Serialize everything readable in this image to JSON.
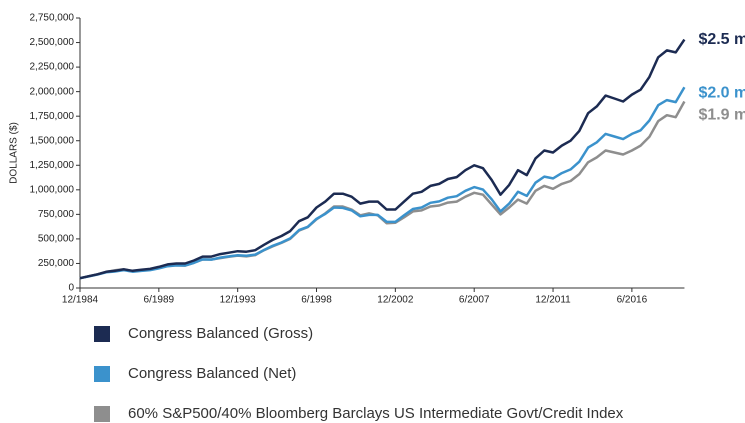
{
  "chart_data": {
    "type": "line",
    "y_label": "DOLLARS ($)",
    "categories": [
      "12/1984",
      null,
      null,
      null,
      null,
      null,
      null,
      null,
      null,
      "6/1989",
      null,
      null,
      null,
      null,
      null,
      null,
      null,
      null,
      "12/1993",
      null,
      null,
      null,
      null,
      null,
      null,
      null,
      null,
      "6/1998",
      null,
      null,
      null,
      null,
      null,
      null,
      null,
      null,
      "12/2002",
      null,
      null,
      null,
      null,
      null,
      null,
      null,
      null,
      "6/2007",
      null,
      null,
      null,
      null,
      null,
      null,
      null,
      null,
      "12/2011",
      null,
      null,
      null,
      null,
      null,
      null,
      null,
      null,
      "6/2016",
      null,
      null,
      null,
      null,
      null,
      null
    ],
    "series": [
      {
        "name": "Congress Balanced  (Gross)",
        "color": "#1c2b52",
        "values": [
          100000,
          120000,
          140000,
          165000,
          175000,
          190000,
          175000,
          185000,
          195000,
          215000,
          240000,
          250000,
          250000,
          280000,
          320000,
          320000,
          345000,
          360000,
          375000,
          370000,
          385000,
          440000,
          490000,
          530000,
          580000,
          680000,
          720000,
          820000,
          880000,
          960000,
          960000,
          930000,
          860000,
          880000,
          880000,
          800000,
          800000,
          880000,
          960000,
          980000,
          1040000,
          1060000,
          1110000,
          1130000,
          1200000,
          1250000,
          1220000,
          1100000,
          950000,
          1050000,
          1200000,
          1150000,
          1320000,
          1400000,
          1380000,
          1450000,
          1500000,
          1600000,
          1780000,
          1850000,
          1960000,
          1930000,
          1900000,
          1970000,
          2020000,
          2150000,
          2350000,
          2420000,
          2400000,
          2530000
        ]
      },
      {
        "name": "Congress Balanced (Net)",
        "color": "#3b92cc",
        "values": [
          100000,
          118000,
          137000,
          160000,
          168000,
          181000,
          166000,
          174000,
          182000,
          200000,
          222000,
          230000,
          229000,
          256000,
          291000,
          289000,
          310000,
          322000,
          334000,
          328000,
          340000,
          387000,
          430000,
          463000,
          505000,
          590000,
          623000,
          705000,
          755000,
          820000,
          816000,
          790000,
          730000,
          745000,
          745000,
          675000,
          673000,
          740000,
          805000,
          820000,
          868000,
          882000,
          920000,
          935000,
          990000,
          1028000,
          1002000,
          903000,
          780000,
          860000,
          980000,
          938000,
          1073000,
          1135000,
          1116000,
          1170000,
          1208000,
          1286000,
          1430000,
          1484000,
          1570000,
          1543000,
          1517000,
          1570000,
          1606000,
          1706000,
          1862000,
          1914000,
          1893000,
          2045000
        ]
      },
      {
        "name": "60% S&P500/40% Bloomberg Barclays US Intermediate Govt/Credit Index",
        "color": "#8e8e8e",
        "values": [
          100000,
          120000,
          140000,
          165000,
          180000,
          190000,
          170000,
          180000,
          188000,
          205000,
          228000,
          232000,
          228000,
          258000,
          290000,
          290000,
          305000,
          318000,
          330000,
          322000,
          335000,
          385000,
          425000,
          460000,
          500000,
          585000,
          620000,
          700000,
          760000,
          830000,
          830000,
          800000,
          740000,
          760000,
          740000,
          660000,
          665000,
          720000,
          780000,
          790000,
          830000,
          840000,
          870000,
          880000,
          930000,
          970000,
          950000,
          850000,
          750000,
          820000,
          900000,
          860000,
          990000,
          1040000,
          1010000,
          1060000,
          1090000,
          1160000,
          1280000,
          1330000,
          1400000,
          1380000,
          1360000,
          1400000,
          1450000,
          1540000,
          1700000,
          1760000,
          1740000,
          1900000
        ]
      }
    ],
    "annotations": [
      "$2.5 m",
      "$2.0 m",
      "$1.9 m"
    ],
    "ylim": [
      0,
      2750000
    ],
    "yticks": [
      0,
      {
        "value": 250000,
        "label": "250,000"
      },
      {
        "value": 500000,
        "label": "500,000"
      },
      {
        "value": 750000,
        "label": "750,000"
      },
      {
        "value": 1000000,
        "label": "1,000,000"
      },
      {
        "value": 1250000,
        "label": "1,250,000"
      },
      {
        "value": 1500000,
        "label": "1,500,000"
      },
      {
        "value": 1750000,
        "label": "1,750,000"
      },
      {
        "value": 2000000,
        "label": "2,000,000"
      },
      {
        "value": 2250000,
        "label": "2,250,000"
      },
      {
        "value": 2500000,
        "label": "2,500,000"
      },
      {
        "value": 2750000,
        "label": "2,750,000"
      }
    ],
    "grid": false
  }
}
